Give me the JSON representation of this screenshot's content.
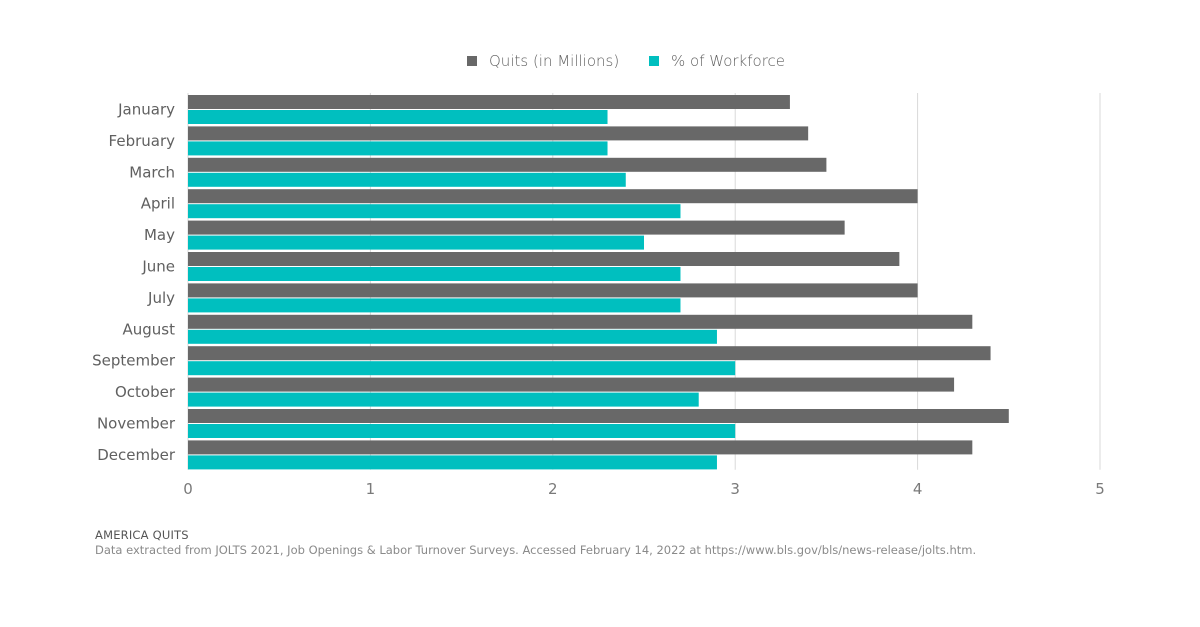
{
  "chart_data": {
    "type": "bar",
    "orientation": "horizontal",
    "categories": [
      "January",
      "February",
      "March",
      "April",
      "May",
      "June",
      "July",
      "August",
      "September",
      "October",
      "November",
      "December"
    ],
    "series": [
      {
        "name": "Quits (in Millions)",
        "color": "#686868",
        "values": [
          3.3,
          3.4,
          3.5,
          4.0,
          3.6,
          3.9,
          4.0,
          4.3,
          4.4,
          4.2,
          4.5,
          4.3
        ]
      },
      {
        "name": "% of Workforce",
        "color": "#00bfbf",
        "values": [
          2.3,
          2.3,
          2.4,
          2.7,
          2.5,
          2.7,
          2.7,
          2.9,
          3.0,
          2.8,
          3.0,
          2.9
        ]
      }
    ],
    "xlim": [
      0,
      5
    ],
    "xticks": [
      "0",
      "1",
      "2",
      "3",
      "4",
      "5"
    ],
    "grid": "vertical",
    "legend": "top-center"
  },
  "footer": {
    "title": "AMERICA QUITS",
    "source": "Data extracted from JOLTS 2021, Job Openings & Labor Turnover Surveys. Accessed February 14, 2022 at https://www.bls.gov/bls/news-release/jolts.htm."
  }
}
